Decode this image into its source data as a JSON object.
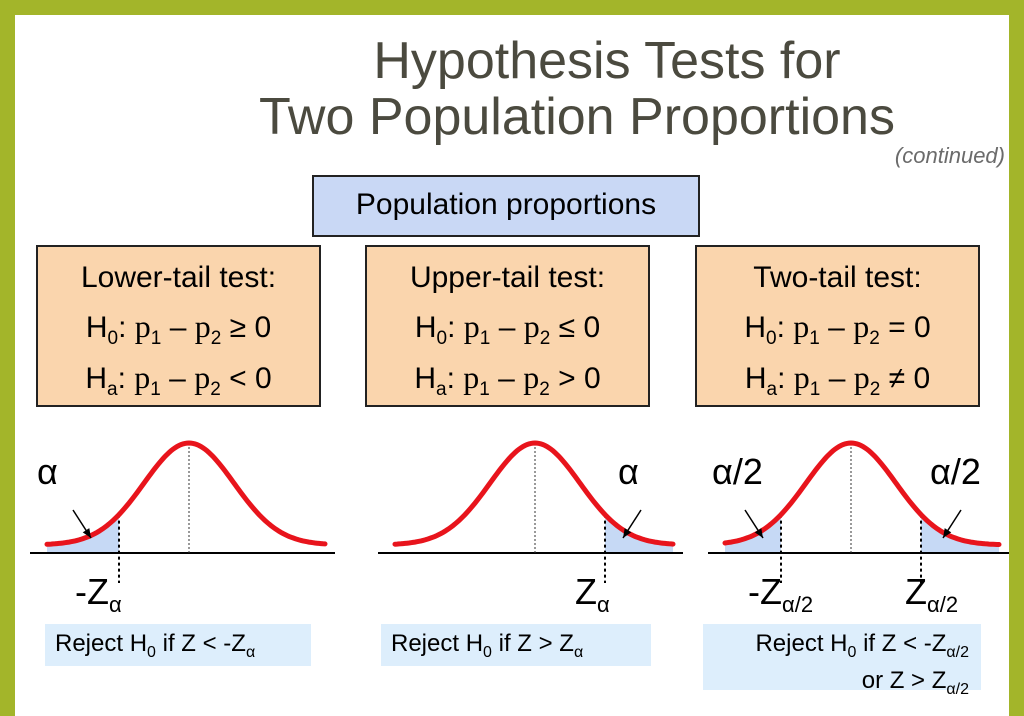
{
  "title_line1": "Hypothesis Tests for",
  "title_line2": "Two Population Proportions",
  "subtitle": "(continued)",
  "population_box": "Population proportions",
  "tests": [
    {
      "name": "Lower-tail test:",
      "h0": {
        "H": "H",
        "sub": "0",
        "colon": ":",
        "p1": "p",
        "p1sub": "1",
        "minus": " – ",
        "p2": "p",
        "p2sub": "2",
        "rel": " ≥ 0"
      },
      "ha": {
        "H": "H",
        "sub": "a",
        "colon": ":",
        "p1": "p",
        "p1sub": "1",
        "minus": " – ",
        "p2": "p",
        "p2sub": "2",
        "rel": " < 0"
      },
      "alpha_label": "α",
      "z_label": "-Z",
      "z_sub": "α",
      "reject": {
        "pre": "Reject H",
        "sub": "0",
        "mid": " if Z < -Z",
        "zsub": "α"
      }
    },
    {
      "name": "Upper-tail test:",
      "h0": {
        "H": "H",
        "sub": "0",
        "colon": ":",
        "p1": "p",
        "p1sub": "1",
        "minus": " – ",
        "p2": "p",
        "p2sub": "2",
        "rel": " ≤ 0"
      },
      "ha": {
        "H": "H",
        "sub": "a",
        "colon": ":",
        "p1": "p",
        "p1sub": "1",
        "minus": " – ",
        "p2": "p",
        "p2sub": "2",
        "rel": " > 0"
      },
      "alpha_label": "α",
      "z_label": "Z",
      "z_sub": "α",
      "reject": {
        "pre": "Reject H",
        "sub": "0",
        "mid": " if Z > Z",
        "zsub": "α"
      }
    },
    {
      "name": "Two-tail test:",
      "h0": {
        "H": "H",
        "sub": "0",
        "colon": ":",
        "p1": "p",
        "p1sub": "1",
        "minus": " – ",
        "p2": "p",
        "p2sub": "2",
        "rel": " = 0"
      },
      "ha": {
        "H": "H",
        "sub": "a",
        "colon": ":",
        "p1": "p",
        "p1sub": "1",
        "minus": " – ",
        "p2": "p",
        "p2sub": "2",
        "rel": " ≠ 0"
      },
      "alpha_left": "α/2",
      "alpha_right": "α/2",
      "z_left": "-Z",
      "z_left_sub": "α/2",
      "z_right": "Z",
      "z_right_sub": "α/2",
      "reject": {
        "pre": "Reject H",
        "sub": "0",
        "mid": " if Z < -Z",
        "zsub": "α/2",
        "line2": "or Z > Z",
        "zsub2": "α/2"
      }
    }
  ],
  "colors": {
    "curve": "#e8141c",
    "shade": "#c6d9f5",
    "box_test": "#fad5ad",
    "box_pop": "#c9d8f5",
    "frame": "#a3b52a"
  }
}
